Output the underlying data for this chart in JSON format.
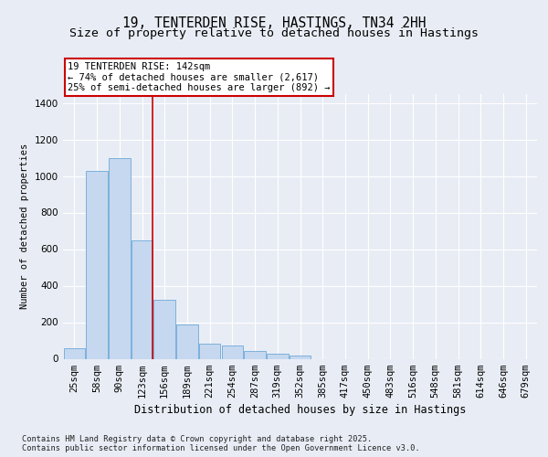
{
  "title": "19, TENTERDEN RISE, HASTINGS, TN34 2HH",
  "subtitle": "Size of property relative to detached houses in Hastings",
  "xlabel": "Distribution of detached houses by size in Hastings",
  "ylabel": "Number of detached properties",
  "categories": [
    "25sqm",
    "58sqm",
    "90sqm",
    "123sqm",
    "156sqm",
    "189sqm",
    "221sqm",
    "254sqm",
    "287sqm",
    "319sqm",
    "352sqm",
    "385sqm",
    "417sqm",
    "450sqm",
    "483sqm",
    "516sqm",
    "548sqm",
    "581sqm",
    "614sqm",
    "646sqm",
    "679sqm"
  ],
  "values": [
    60,
    1030,
    1100,
    650,
    325,
    190,
    85,
    75,
    45,
    30,
    20,
    0,
    0,
    0,
    0,
    0,
    0,
    0,
    0,
    0,
    0
  ],
  "bar_color": "#c5d8ef",
  "bar_edge_color": "#6fa8d8",
  "annotation_line_index": 3,
  "annotation_box_text": "19 TENTERDEN RISE: 142sqm\n← 74% of detached houses are smaller (2,617)\n25% of semi-detached houses are larger (892) →",
  "annotation_box_color": "#ffffff",
  "annotation_box_edge_color": "#cc0000",
  "annotation_line_color": "#cc0000",
  "ylim": [
    0,
    1450
  ],
  "yticks": [
    0,
    200,
    400,
    600,
    800,
    1000,
    1200,
    1400
  ],
  "bg_color": "#e8edf5",
  "plot_bg_color": "#e8edf5",
  "footer_text": "Contains HM Land Registry data © Crown copyright and database right 2025.\nContains public sector information licensed under the Open Government Licence v3.0.",
  "title_fontsize": 10.5,
  "subtitle_fontsize": 9.5,
  "xlabel_fontsize": 8.5,
  "ylabel_fontsize": 7.5,
  "tick_fontsize": 7.5
}
